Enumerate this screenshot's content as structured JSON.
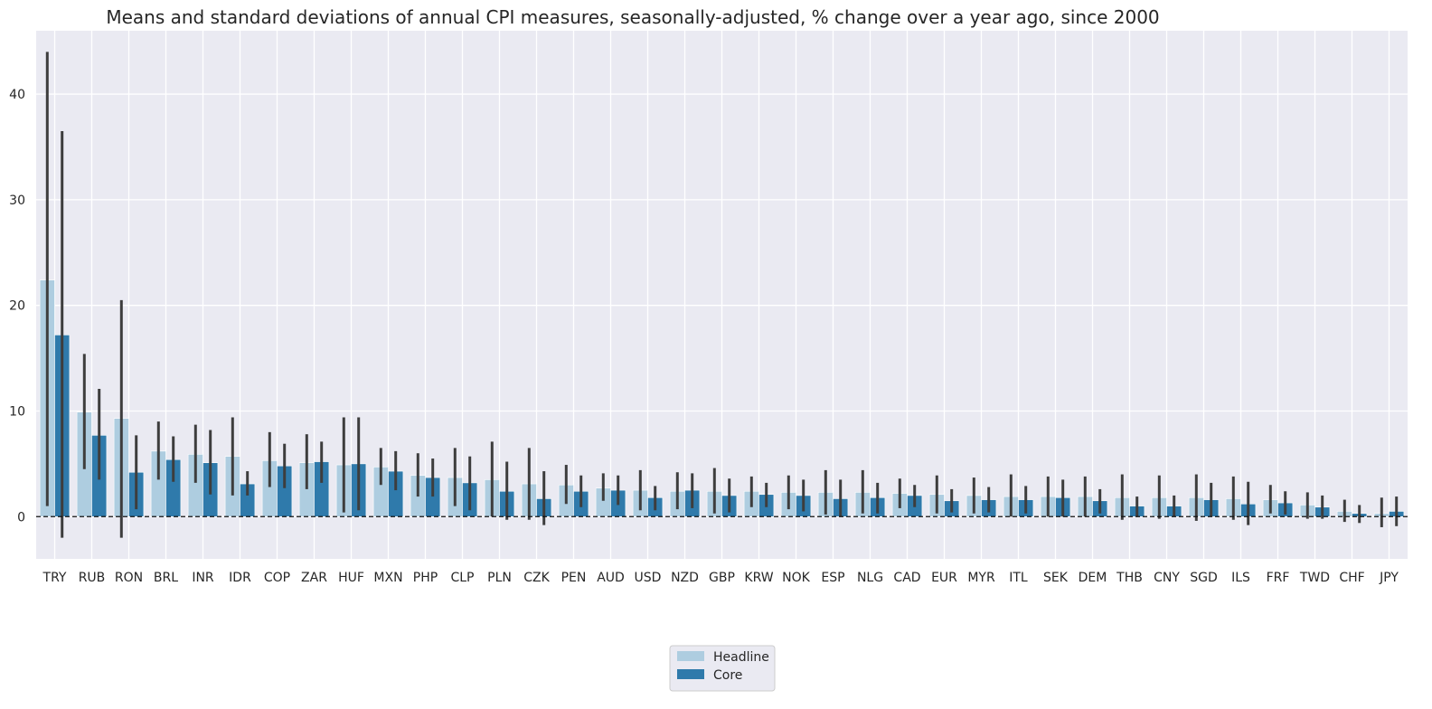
{
  "chart_data": {
    "type": "bar",
    "title": "Means and standard deviations of annual CPI measures, seasonally-adjusted, % change over a year ago, since 2000",
    "xlabel": "",
    "ylabel": "",
    "ylim": [
      -4,
      46
    ],
    "yticks": [
      0,
      10,
      20,
      30,
      40
    ],
    "grid": true,
    "legend": "bottom-center",
    "reference_line": 0,
    "categories": [
      "TRY",
      "RUB",
      "RON",
      "BRL",
      "INR",
      "IDR",
      "COP",
      "ZAR",
      "HUF",
      "MXN",
      "PHP",
      "CLP",
      "PLN",
      "CZK",
      "PEN",
      "AUD",
      "USD",
      "NZD",
      "GBP",
      "KRW",
      "NOK",
      "ESP",
      "NLG",
      "CAD",
      "EUR",
      "MYR",
      "ITL",
      "SEK",
      "DEM",
      "THB",
      "CNY",
      "SGD",
      "ILS",
      "FRF",
      "TWD",
      "CHF",
      "JPY"
    ],
    "series": [
      {
        "name": "Headline",
        "color": "#aecde0",
        "values": [
          22.4,
          9.9,
          9.3,
          6.2,
          5.9,
          5.7,
          5.3,
          5.1,
          4.9,
          4.7,
          3.9,
          3.7,
          3.5,
          3.1,
          3.0,
          2.7,
          2.5,
          2.4,
          2.4,
          2.4,
          2.3,
          2.3,
          2.3,
          2.2,
          2.1,
          2.0,
          1.9,
          1.9,
          1.9,
          1.8,
          1.8,
          1.8,
          1.7,
          1.6,
          1.1,
          0.5,
          0.3
        ],
        "err_low": [
          1.0,
          4.5,
          -2.0,
          3.5,
          3.2,
          2.0,
          2.8,
          2.6,
          0.4,
          3.0,
          1.9,
          1.0,
          0.0,
          -0.3,
          1.2,
          1.5,
          0.6,
          0.7,
          0.3,
          0.9,
          0.7,
          0.2,
          0.3,
          0.8,
          0.3,
          0.3,
          0.0,
          0.0,
          0.0,
          -0.3,
          -0.2,
          -0.4,
          -0.3,
          0.3,
          -0.2,
          -0.5,
          -1.0
        ],
        "err_high": [
          44.0,
          15.4,
          20.5,
          9.0,
          8.7,
          9.4,
          8.0,
          7.8,
          9.4,
          6.5,
          6.0,
          6.5,
          7.1,
          6.5,
          4.9,
          4.1,
          4.4,
          4.2,
          4.6,
          3.8,
          3.9,
          4.4,
          4.4,
          3.6,
          3.9,
          3.7,
          4.0,
          3.8,
          3.8,
          4.0,
          3.9,
          4.0,
          3.8,
          3.0,
          2.3,
          1.6,
          1.8
        ]
      },
      {
        "name": "Core",
        "color": "#2f7aab",
        "values": [
          17.2,
          7.7,
          4.2,
          5.4,
          5.1,
          3.1,
          4.8,
          5.2,
          5.0,
          4.3,
          3.7,
          3.2,
          2.4,
          1.7,
          2.4,
          2.5,
          1.8,
          2.5,
          2.0,
          2.1,
          2.0,
          1.7,
          1.8,
          2.0,
          1.5,
          1.6,
          1.6,
          1.8,
          1.5,
          1.0,
          1.0,
          1.6,
          1.2,
          1.3,
          0.9,
          0.3,
          0.5
        ],
        "err_low": [
          -2.0,
          3.5,
          0.7,
          3.3,
          2.1,
          2.0,
          2.7,
          3.2,
          0.6,
          2.5,
          1.9,
          0.6,
          -0.3,
          -0.8,
          0.9,
          1.1,
          0.6,
          0.8,
          0.4,
          0.9,
          0.5,
          0.0,
          0.3,
          0.9,
          0.4,
          0.4,
          0.3,
          0.0,
          0.3,
          0.0,
          0.0,
          0.0,
          -0.8,
          0.2,
          -0.2,
          -0.6,
          -0.9
        ],
        "err_high": [
          36.5,
          12.1,
          7.7,
          7.6,
          8.2,
          4.3,
          6.9,
          7.1,
          9.4,
          6.2,
          5.5,
          5.7,
          5.2,
          4.3,
          3.9,
          3.9,
          2.9,
          4.1,
          3.6,
          3.2,
          3.5,
          3.5,
          3.2,
          3.0,
          2.6,
          2.8,
          2.9,
          3.5,
          2.6,
          1.9,
          2.0,
          3.2,
          3.3,
          2.4,
          2.0,
          1.1,
          1.9
        ]
      }
    ]
  }
}
